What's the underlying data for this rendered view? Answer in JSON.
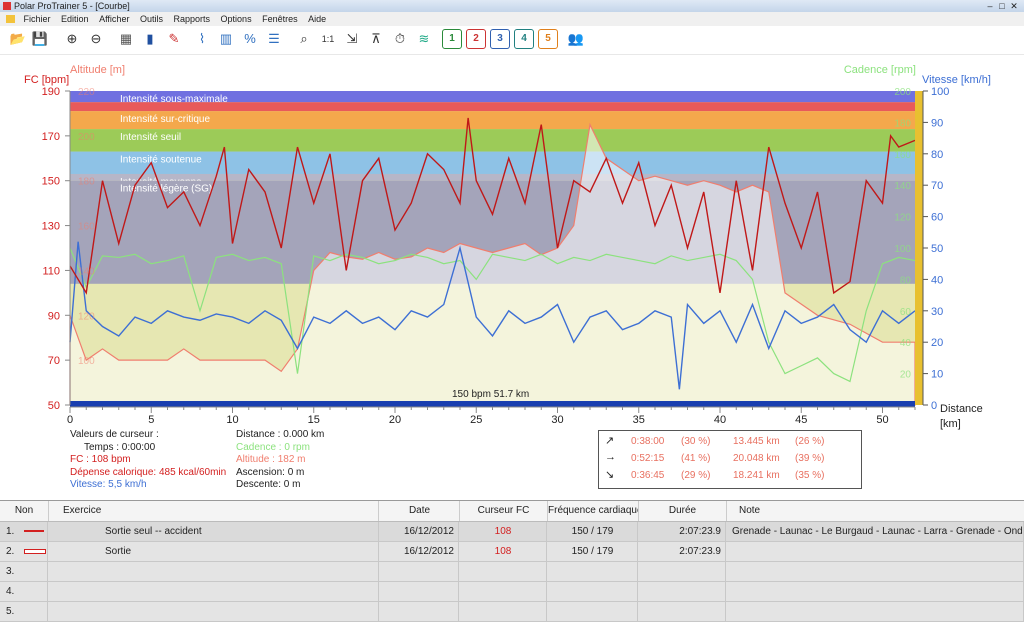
{
  "window": {
    "title": "Polar ProTrainer 5 - [Courbe]",
    "minimize": "–",
    "maximize": "□",
    "close": "✕"
  },
  "menu": [
    "Fichier",
    "Edition",
    "Afficher",
    "Outils",
    "Rapports",
    "Options",
    "Fenêtres",
    "Aide"
  ],
  "toolbar": [
    {
      "icon": "open-folder-icon",
      "glyph": "📂",
      "color": "#e8b830"
    },
    {
      "icon": "save-disk-icon",
      "glyph": "💾",
      "color": "#3b5ea8"
    },
    {
      "icon": "add-exercise-icon",
      "glyph": "⊕",
      "color": "#333"
    },
    {
      "icon": "remove-exercise-icon",
      "glyph": "⊖",
      "color": "#333"
    },
    {
      "icon": "calendar-icon",
      "glyph": "▦",
      "color": "#555"
    },
    {
      "icon": "book-icon",
      "glyph": "▮",
      "color": "#2050a0"
    },
    {
      "icon": "person-note-icon",
      "glyph": "✎",
      "color": "#c33"
    },
    {
      "icon": "curve-view-icon",
      "glyph": "⌇",
      "color": "#3070c0"
    },
    {
      "icon": "bar-view-icon",
      "glyph": "▥",
      "color": "#3070c0"
    },
    {
      "icon": "percent-view-icon",
      "glyph": "%",
      "color": "#3070c0"
    },
    {
      "icon": "list-view-icon",
      "glyph": "☰",
      "color": "#3070c0"
    },
    {
      "icon": "zoom-icon",
      "glyph": "⌕",
      "color": "#333"
    },
    {
      "icon": "zoom-one-to-one-icon",
      "glyph": "1:1",
      "color": "#333"
    },
    {
      "icon": "marker-icon",
      "glyph": "⇲",
      "color": "#333"
    },
    {
      "icon": "lap-icon",
      "glyph": "⊼",
      "color": "#333"
    },
    {
      "icon": "stopwatch-icon",
      "glyph": "⏱",
      "color": "#333"
    },
    {
      "icon": "wave-icon",
      "glyph": "≋",
      "color": "#2a8"
    },
    {
      "icon": "chart-1-icon",
      "glyph": "1",
      "color": "#2a8a3a"
    },
    {
      "icon": "chart-2-icon",
      "glyph": "2",
      "color": "#c33"
    },
    {
      "icon": "chart-3-icon",
      "glyph": "3",
      "color": "#3060b0"
    },
    {
      "icon": "chart-4-icon",
      "glyph": "4",
      "color": "#208080"
    },
    {
      "icon": "chart-5-icon",
      "glyph": "5",
      "color": "#e0801c"
    },
    {
      "icon": "users-icon",
      "glyph": "👥",
      "color": "#c33"
    }
  ],
  "chart_data": {
    "type": "line",
    "axes_labels": {
      "fc": "FC [bpm]",
      "altitude": "Altitude  [m]",
      "cadence": "Cadence [rpm]",
      "vitesse": "Vitesse [km/h]",
      "distance": "Distance",
      "distance_unit": "[km]"
    },
    "fc_ticks": [
      190,
      170,
      150,
      130,
      110,
      90,
      70,
      50
    ],
    "fc_range": [
      50,
      190
    ],
    "altitude_ticks": [
      220,
      200,
      180,
      160,
      140,
      120,
      100
    ],
    "cadence_ticks": [
      200,
      180,
      160,
      140,
      120,
      100,
      80,
      60,
      40,
      20
    ],
    "vitesse_ticks": [
      100,
      90,
      80,
      70,
      60,
      50,
      40,
      30,
      20,
      10,
      0
    ],
    "vitesse_range": [
      0,
      100
    ],
    "distance_ticks": [
      0,
      5,
      10,
      15,
      20,
      25,
      30,
      35,
      40,
      45,
      50
    ],
    "distance_range": [
      0,
      52
    ],
    "zones": [
      {
        "label": "Intensité sous-maximale",
        "from": 185,
        "to": 190,
        "color": "#7070e0"
      },
      {
        "label": "",
        "from": 181,
        "to": 185,
        "color": "#e85a5a"
      },
      {
        "label": "Intensité sur-critique",
        "from": 173,
        "to": 181,
        "color": "#f4a84c"
      },
      {
        "label": "Intensité seuil",
        "from": 163,
        "to": 173,
        "color": "#9ccb58"
      },
      {
        "label": "Intensité soutenue",
        "from": 153,
        "to": 163,
        "color": "#8ec2e6"
      },
      {
        "label": "Intensité moyenne",
        "from": 150,
        "to": 153,
        "color": "#b6b6c8"
      },
      {
        "label": "Intensité légère (SG)",
        "from": 104,
        "to": 150,
        "color": "#a4a4ba"
      },
      {
        "label": "",
        "from": 50,
        "to": 104,
        "color": "#e6e7b2"
      }
    ],
    "threshold_label": "150 bpm 51.7 km",
    "series": [
      {
        "name": "FC",
        "color": "#c01818",
        "x": [
          0,
          1,
          2,
          3,
          4,
          5,
          6,
          7,
          8,
          9,
          9.5,
          10,
          11,
          12,
          13,
          14,
          15,
          16,
          17,
          18,
          19,
          20,
          21,
          22,
          23,
          24,
          24.5,
          25,
          26,
          27,
          28,
          29,
          30,
          31,
          32,
          33,
          34,
          35,
          36,
          37,
          38,
          39,
          40,
          41,
          42,
          43,
          44,
          45,
          46,
          47,
          48,
          49,
          50,
          50.5,
          51,
          52
        ],
        "y": [
          112,
          100,
          150,
          122,
          148,
          158,
          138,
          145,
          130,
          152,
          165,
          122,
          155,
          145,
          120,
          165,
          140,
          162,
          110,
          150,
          160,
          128,
          140,
          162,
          155,
          140,
          178,
          150,
          135,
          160,
          140,
          175,
          120,
          150,
          145,
          160,
          140,
          158,
          130,
          148,
          120,
          145,
          100,
          150,
          110,
          165,
          140,
          120,
          145,
          100,
          105,
          150,
          140,
          170,
          165,
          168
        ]
      },
      {
        "name": "Altitude",
        "color": "#f07e6e",
        "x": [
          0,
          1,
          2,
          3,
          4,
          5,
          6,
          7,
          8,
          9,
          10,
          11,
          12,
          13,
          14,
          15,
          16,
          17,
          18,
          19,
          20,
          21,
          22,
          23,
          24,
          25,
          26,
          27,
          28,
          29,
          30,
          31,
          32,
          33,
          34,
          35,
          36,
          37,
          38,
          39,
          40,
          41,
          42,
          43,
          44,
          45,
          46,
          47,
          48,
          49,
          50,
          51,
          52
        ],
        "y": [
          120,
          100,
          105,
          100,
          100,
          100,
          100,
          105,
          100,
          100,
          100,
          100,
          100,
          95,
          105,
          140,
          148,
          146,
          145,
          148,
          145,
          146,
          150,
          148,
          152,
          150,
          148,
          150,
          152,
          147,
          150,
          160,
          205,
          190,
          185,
          180,
          182,
          180,
          178,
          180,
          178,
          175,
          178,
          175,
          130,
          125,
          120,
          118,
          116,
          112,
          108,
          108,
          108
        ]
      },
      {
        "name": "Cadence",
        "color": "#8ce27e",
        "x": [
          0,
          1,
          2,
          3,
          4,
          5,
          6,
          7,
          8,
          9,
          10,
          11,
          12,
          13,
          14,
          15,
          16,
          17,
          18,
          19,
          20,
          21,
          22,
          23,
          24,
          25,
          26,
          27,
          28,
          29,
          30,
          31,
          32,
          33,
          34,
          35,
          36,
          37,
          38,
          39,
          40,
          41,
          42,
          43,
          44,
          45,
          46,
          47,
          48,
          49,
          50,
          51,
          52
        ],
        "y": [
          100,
          75,
          95,
          94,
          96,
          90,
          92,
          95,
          60,
          94,
          96,
          92,
          94,
          90,
          20,
          95,
          92,
          96,
          94,
          90,
          92,
          96,
          94,
          90,
          92,
          80,
          96,
          94,
          92,
          96,
          90,
          94,
          92,
          96,
          94,
          92,
          90,
          95,
          92,
          94,
          96,
          92,
          80,
          40,
          20,
          25,
          30,
          20,
          15,
          60,
          90,
          94,
          92
        ]
      },
      {
        "name": "Vitesse",
        "color": "#3d6fd4",
        "x": [
          0,
          0.5,
          1,
          2,
          3,
          4,
          5,
          6,
          7,
          8,
          9,
          10,
          11,
          12,
          13,
          14,
          15,
          16,
          17,
          18,
          19,
          20,
          21,
          22,
          23,
          24,
          25,
          26,
          27,
          28,
          29,
          30,
          31,
          32,
          33,
          34,
          35,
          36,
          37,
          37.5,
          38,
          39,
          40,
          41,
          42,
          43,
          44,
          45,
          46,
          47,
          48,
          49,
          50,
          51,
          52
        ],
        "y": [
          20,
          52,
          30,
          25,
          22,
          28,
          26,
          30,
          28,
          27,
          29,
          28,
          26,
          30,
          27,
          18,
          28,
          26,
          30,
          26,
          28,
          24,
          30,
          28,
          32,
          50,
          28,
          22,
          30,
          26,
          28,
          32,
          20,
          28,
          30,
          24,
          26,
          30,
          28,
          5,
          32,
          26,
          30,
          20,
          32,
          18,
          30,
          26,
          28,
          32,
          24,
          20,
          30,
          26,
          30
        ]
      }
    ]
  },
  "cursor": {
    "heading": "Valeurs de curseur :",
    "temps": "Temps : 0:00:00",
    "fc": "FC : 108 bpm",
    "depense": "Dépense calorique: 485 kcal/60min",
    "vitesse": "Vitesse: 5,5 km/h",
    "distance": "Distance : 0.000 km",
    "cadence": "Cadence : 0 rpm",
    "altitude": "Altitude : 182 m",
    "ascension": "Ascension: 0 m",
    "descente": "Descente: 0 m"
  },
  "laps": [
    {
      "arrow": "↗",
      "time": "0:38:00",
      "pct": "(30 %)",
      "dist": "13.445 km",
      "dpct": "(26 %)"
    },
    {
      "arrow": "→",
      "time": "0:52:15",
      "pct": "(41 %)",
      "dist": "20.048 km",
      "dpct": "(39 %)"
    },
    {
      "arrow": "↘",
      "time": "0:36:45",
      "pct": "(29 %)",
      "dist": "18.241 km",
      "dpct": "(35 %)"
    }
  ],
  "table": {
    "headers": [
      "Non",
      "Exercice",
      "Date",
      "Curseur FC",
      "Fréquence cardiaque",
      "Durée",
      "Note"
    ],
    "rows": [
      {
        "num": "1.",
        "exercice": "Sortie seul -- accident",
        "date": "16/12/2012",
        "curseur": "108",
        "fc": "150 / 179",
        "duree": "2:07:23.9",
        "note": "Grenade - Launac - Le Burgaud - Launac - Larra - Grenade - Ondes"
      },
      {
        "num": "2.",
        "exercice": "Sortie",
        "date": "16/12/2012",
        "curseur": "108",
        "fc": "150 / 179",
        "duree": "2:07:23.9",
        "note": ""
      },
      {
        "num": "3.",
        "exercice": "",
        "date": "",
        "curseur": "",
        "fc": "",
        "duree": "",
        "note": ""
      },
      {
        "num": "4.",
        "exercice": "",
        "date": "",
        "curseur": "",
        "fc": "",
        "duree": "",
        "note": ""
      },
      {
        "num": "5.",
        "exercice": "",
        "date": "",
        "curseur": "",
        "fc": "",
        "duree": "",
        "note": ""
      }
    ]
  },
  "colors": {
    "fc": "#d32020",
    "altitude": "#f07e6e",
    "cadence": "#8ce27e",
    "vitesse": "#3d6fd4"
  }
}
